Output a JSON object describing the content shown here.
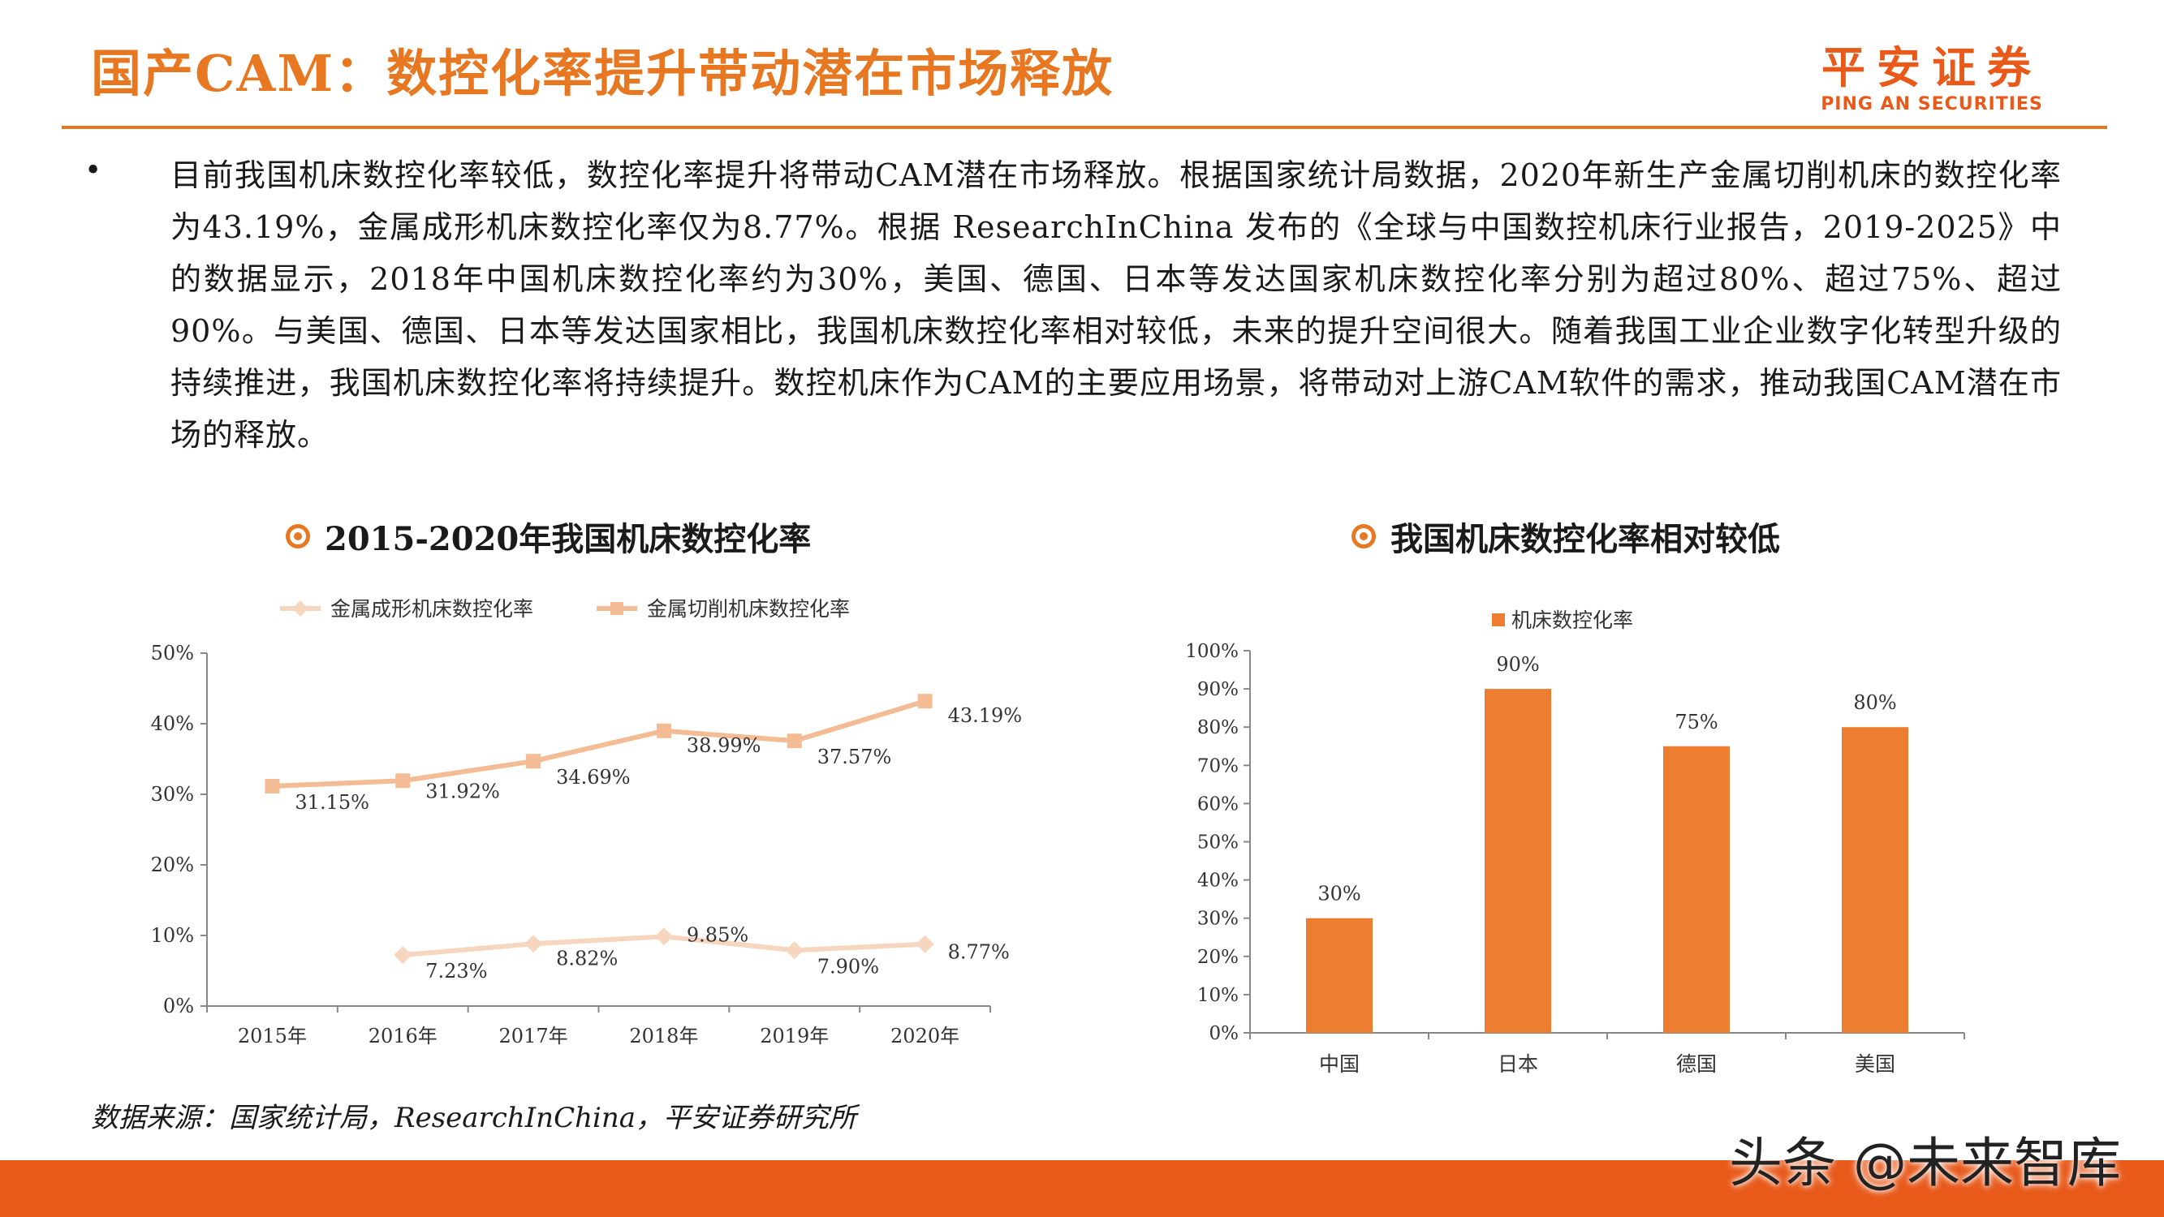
{
  "header": {
    "title": "国产CAM：数控化率提升带动潜在市场释放",
    "logo_zh": "平安证券",
    "logo_en": "PING AN SECURITIES"
  },
  "body": {
    "bullet": "•",
    "paragraph": "目前我国机床数控化率较低，数控化率提升将带动CAM潜在市场释放。根据国家统计局数据，2020年新生产金属切削机床的数控化率为43.19%，金属成形机床数控化率仅为8.77%。根据 ResearchInChina 发布的《全球与中国数控机床行业报告，2019-2025》中的数据显示，2018年中国机床数控化率约为30%，美国、德国、日本等发达国家机床数控化率分别为超过80%、超过75%、超过90%。与美国、德国、日本等发达国家相比，我国机床数控化率相对较低，未来的提升空间很大。随着我国工业企业数字化转型升级的持续推进，我国机床数控化率将持续提升。数控机床作为CAM的主要应用场景，将带动对上游CAM软件的需求，推动我国CAM潜在市场的释放。"
  },
  "colors": {
    "accent": "#e87722",
    "line_light": "#f7d6bf",
    "line_dark": "#f4bc94",
    "bar": "#ed7d31"
  },
  "chart_data": [
    {
      "type": "line",
      "title": "2015-2020年我国机床数控化率",
      "categories": [
        "2015年",
        "2016年",
        "2017年",
        "2018年",
        "2019年",
        "2020年"
      ],
      "series": [
        {
          "name": "金属成形机床数控化率",
          "values": [
            null,
            7.23,
            8.82,
            9.85,
            7.9,
            8.77
          ],
          "labels": [
            "",
            "7.23%",
            "8.82%",
            "9.85%",
            "7.90%",
            "8.77%"
          ],
          "marker": "diamond"
        },
        {
          "name": "金属切削机床数控化率",
          "values": [
            31.15,
            31.92,
            34.69,
            38.99,
            37.57,
            43.19
          ],
          "labels": [
            "31.15%",
            "31.92%",
            "34.69%",
            "38.99%",
            "37.57%",
            "43.19%"
          ],
          "marker": "square"
        }
      ],
      "yticks": [
        "0%",
        "10%",
        "20%",
        "30%",
        "40%",
        "50%"
      ],
      "ylim": [
        0,
        50
      ],
      "grid": false,
      "legend": "top-left"
    },
    {
      "type": "bar",
      "title": "我国机床数控化率相对较低",
      "categories": [
        "中国",
        "日本",
        "德国",
        "美国"
      ],
      "series": [
        {
          "name": "机床数控化率",
          "values": [
            30,
            90,
            75,
            80
          ],
          "labels": [
            "30%",
            "90%",
            "75%",
            "80%"
          ]
        }
      ],
      "yticks": [
        "0%",
        "10%",
        "20%",
        "30%",
        "40%",
        "50%",
        "60%",
        "70%",
        "80%",
        "90%",
        "100%"
      ],
      "ylim": [
        0,
        100
      ],
      "grid": false,
      "legend": "top"
    }
  ],
  "footer": {
    "source": "数据来源：国家统计局，ResearchInChina，平安证券研究所",
    "watermark": "头条 @未来智库"
  }
}
